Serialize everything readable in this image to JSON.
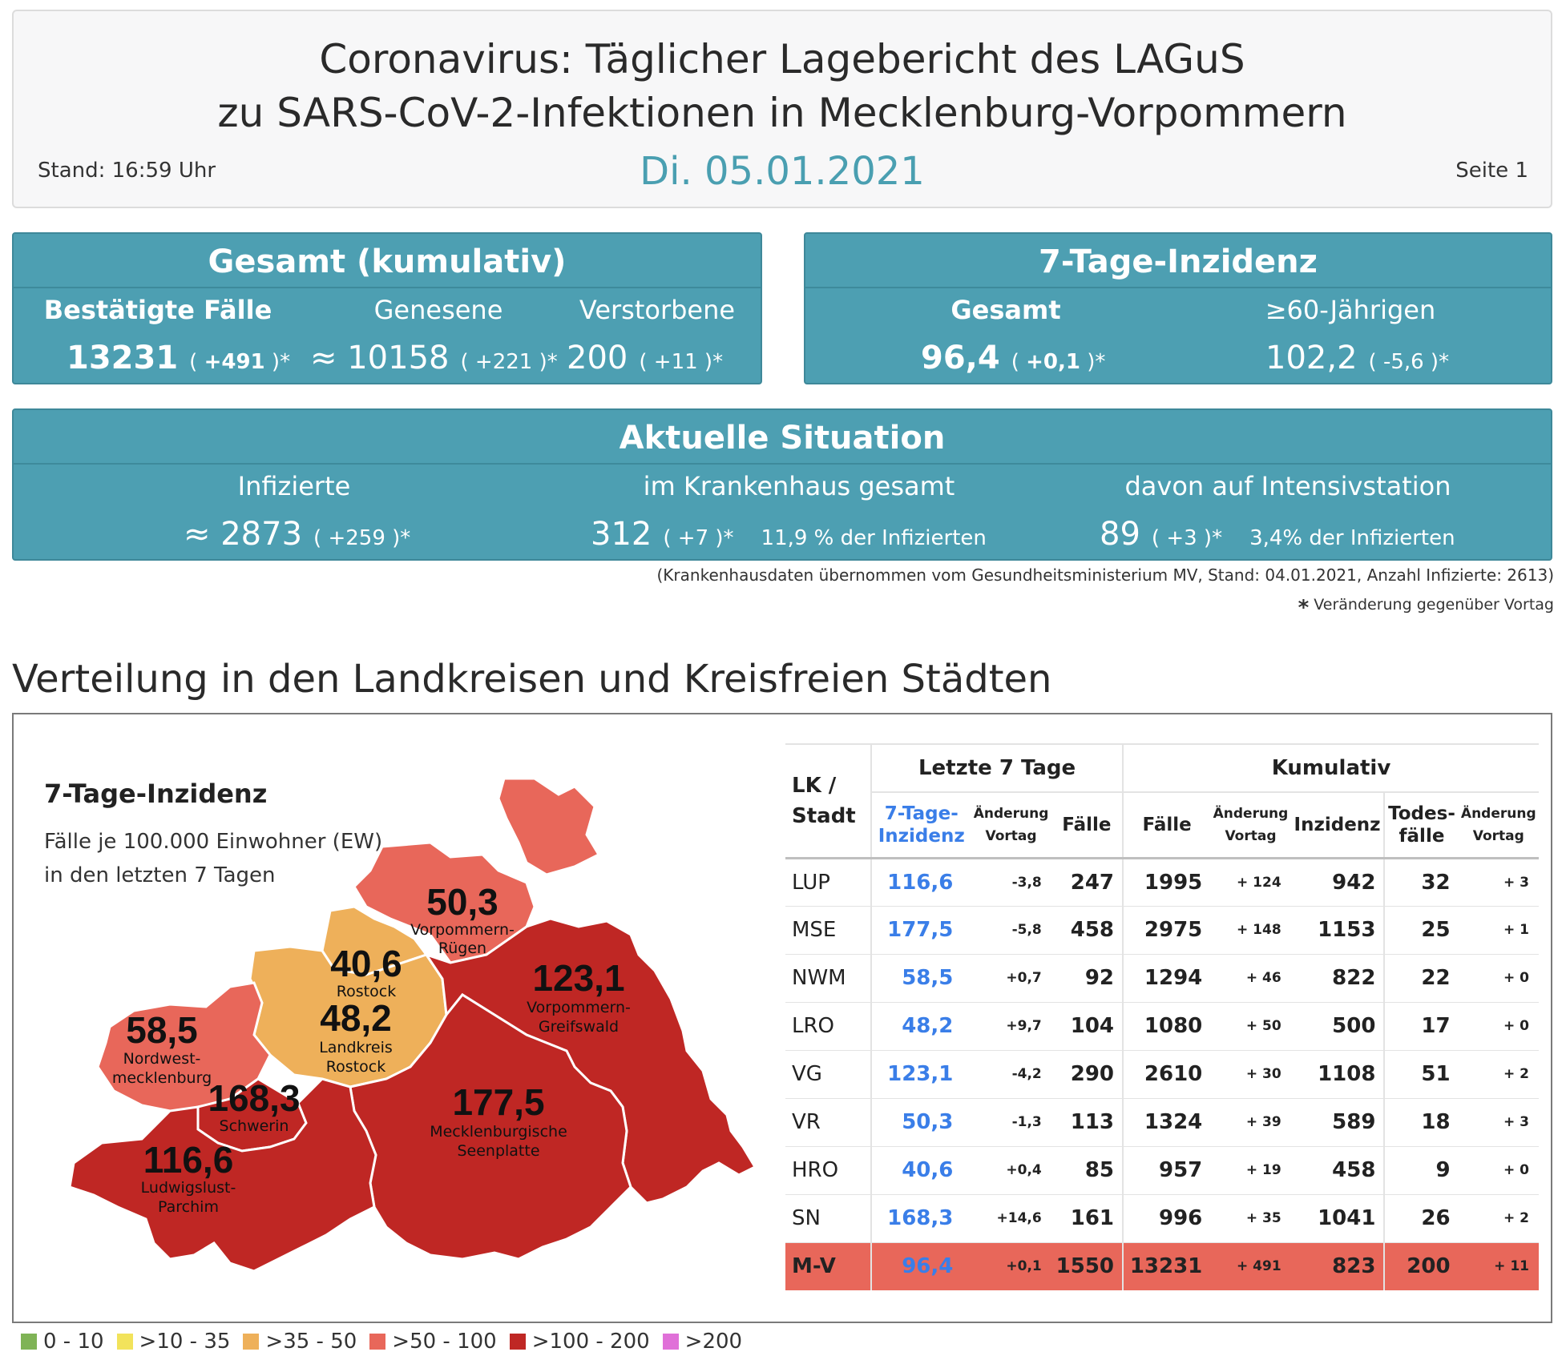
{
  "header": {
    "title_line1": "Coronavirus: Täglicher Lagebericht des LAGuS",
    "title_line2": "zu SARS-CoV-2-Infektionen in Mecklenburg-Vorpommern",
    "date": "Di. 05.01.2021",
    "stand": "Stand: 16:59 Uhr",
    "page": "Seite 1"
  },
  "gesamt": {
    "title": "Gesamt (kumulativ)",
    "confirmed_label": "Bestätigte Fälle",
    "confirmed_value": "13231",
    "confirmed_change": "+491",
    "recovered_label": "Genesene",
    "recovered_value": "≈ 10158",
    "recovered_change": "+221",
    "deaths_label": "Verstorbene",
    "deaths_value": "200",
    "deaths_change": "+11"
  },
  "inzidenz": {
    "title": "7-Tage-Inzidenz",
    "total_label": "Gesamt",
    "total_value": "96,4",
    "total_change": "+0,1",
    "over60_label": "≥60-Jährigen",
    "over60_value": "102,2",
    "over60_change": "-5,6"
  },
  "aktuell": {
    "title": "Aktuelle Situation",
    "infected_label": "Infizierte",
    "infected_value": "≈ 2873",
    "infected_change": "+259",
    "hospital_label": "im Krankenhaus gesamt",
    "hospital_value": "312",
    "hospital_change": "+7",
    "hospital_pct": "11,9 % der Infizierten",
    "icu_label": "davon auf Intensivstation",
    "icu_value": "89",
    "icu_change": "+3",
    "icu_pct": "3,4% der Infizierten"
  },
  "notes": {
    "hospital_source": "(Krankenhausdaten übernommen vom Gesundheitsministerium MV, Stand: 04.01.2021, Anzahl Infizierte: 2613)",
    "change_star": "*",
    "change_note": "Veränderung gegenüber Vortag"
  },
  "section_title": "Verteilung in den Landkreisen und Kreisfreien Städten",
  "map": {
    "title": "7-Tage-Inzidenz",
    "subtitle1": "Fälle je 100.000 Einwohner (EW)",
    "subtitle2": "in den letzten 7 Tagen",
    "regions": {
      "vr": {
        "value": "50,3",
        "name1": "Vorpommern-",
        "name2": "Rügen",
        "color": "#e8675a"
      },
      "hro": {
        "value": "40,6",
        "name1": "Rostock",
        "color": "#eeb05a"
      },
      "lro": {
        "value": "48,2",
        "name1": "Landkreis",
        "name2": "Rostock",
        "color": "#eeb05a"
      },
      "vg": {
        "value": "123,1",
        "name1": "Vorpommern-",
        "name2": "Greifswald",
        "color": "#bf2724"
      },
      "nwm": {
        "value": "58,5",
        "name1": "Nordwest-",
        "name2": "mecklenburg",
        "color": "#e8675a"
      },
      "sn": {
        "value": "168,3",
        "name1": "Schwerin",
        "color": "#bf2724"
      },
      "mse": {
        "value": "177,5",
        "name1": "Mecklenburgische",
        "name2": "Seenplatte",
        "color": "#bf2724"
      },
      "lup": {
        "value": "116,6",
        "name1": "Ludwigslust-",
        "name2": "Parchim",
        "color": "#bf2724"
      }
    }
  },
  "table": {
    "col_lk_1": "LK /",
    "col_lk_2": "Stadt",
    "group_7days": "Letzte 7 Tage",
    "group_kumulativ": "Kumulativ",
    "h_inz_1": "7-Tage-",
    "h_inz_2": "Inzidenz",
    "h_chg_1": "Änderung",
    "h_chg_2": "Vortag",
    "h_faelle": "Fälle",
    "h_kfaelle": "Fälle",
    "h_kchg_1": "Änderung",
    "h_kchg_2": "Vortag",
    "h_kinz": "Inzidenz",
    "h_tod_1": "Todes-",
    "h_tod_2": "fälle",
    "h_tchg_1": "Änderung",
    "h_tchg_2": "Vortag",
    "rows": [
      {
        "lk": "LUP",
        "inz": "116,6",
        "chg": "-3,8",
        "faelle": "247",
        "kfaelle": "1995",
        "kchg": "+ 124",
        "kinz": "942",
        "tod": "32",
        "tchg": "+ 3"
      },
      {
        "lk": "MSE",
        "inz": "177,5",
        "chg": "-5,8",
        "faelle": "458",
        "kfaelle": "2975",
        "kchg": "+ 148",
        "kinz": "1153",
        "tod": "25",
        "tchg": "+ 1"
      },
      {
        "lk": "NWM",
        "inz": "58,5",
        "chg": "+0,7",
        "faelle": "92",
        "kfaelle": "1294",
        "kchg": "+ 46",
        "kinz": "822",
        "tod": "22",
        "tchg": "+ 0"
      },
      {
        "lk": "LRO",
        "inz": "48,2",
        "chg": "+9,7",
        "faelle": "104",
        "kfaelle": "1080",
        "kchg": "+ 50",
        "kinz": "500",
        "tod": "17",
        "tchg": "+ 0"
      },
      {
        "lk": "VG",
        "inz": "123,1",
        "chg": "-4,2",
        "faelle": "290",
        "kfaelle": "2610",
        "kchg": "+ 30",
        "kinz": "1108",
        "tod": "51",
        "tchg": "+ 2"
      },
      {
        "lk": "VR",
        "inz": "50,3",
        "chg": "-1,3",
        "faelle": "113",
        "kfaelle": "1324",
        "kchg": "+ 39",
        "kinz": "589",
        "tod": "18",
        "tchg": "+ 3"
      },
      {
        "lk": "HRO",
        "inz": "40,6",
        "chg": "+0,4",
        "faelle": "85",
        "kfaelle": "957",
        "kchg": "+ 19",
        "kinz": "458",
        "tod": "9",
        "tchg": "+ 0"
      },
      {
        "lk": "SN",
        "inz": "168,3",
        "chg": "+14,6",
        "faelle": "161",
        "kfaelle": "996",
        "kchg": "+ 35",
        "kinz": "1041",
        "tod": "26",
        "tchg": "+ 2"
      }
    ],
    "total": {
      "lk": "M-V",
      "inz": "96,4",
      "chg": "+0,1",
      "faelle": "1550",
      "kfaelle": "13231",
      "kchg": "+ 491",
      "kinz": "823",
      "tod": "200",
      "tchg": "+ 11"
    }
  },
  "legend": [
    {
      "label": "0 - 10",
      "color": "#7fb356"
    },
    {
      "label": ">10 - 35",
      "color": "#f2e35b"
    },
    {
      "label": ">35 - 50",
      "color": "#eeb05a"
    },
    {
      "label": ">50 - 100",
      "color": "#e8675a"
    },
    {
      "label": ">100 - 200",
      "color": "#bf2724"
    },
    {
      "label": ">200",
      "color": "#e070d8"
    }
  ]
}
